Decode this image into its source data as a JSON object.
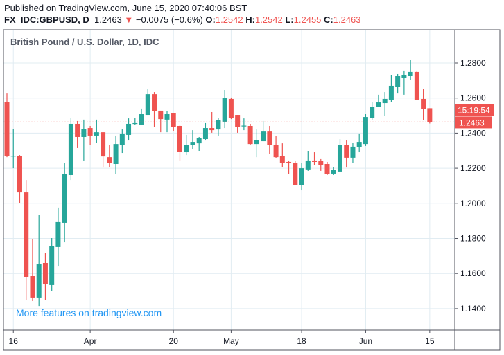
{
  "header": {
    "published": "Published on TradingView.com, June 15, 2020 07:40:06 BST",
    "symbol": "FX_IDC:GBPUSD, D",
    "last": "1.2463",
    "change": "−0.0075 (−0.6%)",
    "o_label": "O:",
    "o": "1.2542",
    "h_label": "H:",
    "h": "1.2542",
    "l_label": "L:",
    "l": "1.2455",
    "c_label": "C:",
    "c": "1.2463"
  },
  "watermark": "More features on tradingview.com",
  "colors": {
    "up": "#26a69a",
    "down": "#ef5350",
    "grid": "#e1ecf2",
    "axis": "#50535e",
    "link": "#2196f3"
  },
  "chart_data": {
    "type": "candlestick",
    "title": "British Pound / U.S. Dollar, 1D, IDC",
    "ylim": [
      1.128,
      1.294
    ],
    "y_ticks": [
      "1.2800",
      "1.2600",
      "1.2400",
      "1.2200",
      "1.2000",
      "1.1800",
      "1.1600",
      "1.1400"
    ],
    "y_tick_values": [
      1.28,
      1.26,
      1.24,
      1.22,
      1.2,
      1.18,
      1.16,
      1.14
    ],
    "x_ticks": [
      {
        "label": "16",
        "index": 1
      },
      {
        "label": "Apr",
        "index": 13
      },
      {
        "label": "20",
        "index": 26
      },
      {
        "label": "May",
        "index": 35
      },
      {
        "label": "18",
        "index": 46
      },
      {
        "label": "Jun",
        "index": 56
      },
      {
        "label": "15",
        "index": 66
      }
    ],
    "last_price_label": "1.2463",
    "countdown_label": "15:19:54",
    "last_price": 1.2463,
    "ohlc": [
      [
        1.2579,
        1.2626,
        1.2263,
        1.2271
      ],
      [
        1.2271,
        1.2425,
        1.22,
        1.2271
      ],
      [
        1.2271,
        1.2275,
        1.2003,
        1.2062
      ],
      [
        1.2062,
        1.2133,
        1.1451,
        1.1581
      ],
      [
        1.1585,
        1.1798,
        1.1443,
        1.1463
      ],
      [
        1.1463,
        1.1936,
        1.1415,
        1.1652
      ],
      [
        1.166,
        1.1719,
        1.1447,
        1.1538
      ],
      [
        1.1534,
        1.1802,
        1.1502,
        1.1758
      ],
      [
        1.1751,
        1.1976,
        1.164,
        1.1893
      ],
      [
        1.1889,
        1.2232,
        1.1778,
        1.2165
      ],
      [
        1.2161,
        1.2488,
        1.2133,
        1.2453
      ],
      [
        1.2453,
        1.2469,
        1.2315,
        1.2378
      ],
      [
        1.2378,
        1.2477,
        1.2244,
        1.2425
      ],
      [
        1.2429,
        1.2441,
        1.2331,
        1.2386
      ],
      [
        1.2386,
        1.2477,
        1.2346,
        1.2405
      ],
      [
        1.2405,
        1.2405,
        1.2204,
        1.2267
      ],
      [
        1.2263,
        1.2331,
        1.2208,
        1.2228
      ],
      [
        1.2224,
        1.2386,
        1.2165,
        1.2338
      ],
      [
        1.2334,
        1.2421,
        1.2287,
        1.2394
      ],
      [
        1.239,
        1.2484,
        1.2358,
        1.2453
      ],
      [
        1.2453,
        1.2488,
        1.2445,
        1.2457
      ],
      [
        1.2449,
        1.254,
        1.2449,
        1.2508
      ],
      [
        1.2504,
        1.265,
        1.2504,
        1.2622
      ],
      [
        1.2622,
        1.2634,
        1.2437,
        1.2524
      ],
      [
        1.2528,
        1.2528,
        1.2405,
        1.248
      ],
      [
        1.2477,
        1.2524,
        1.2405,
        1.2508
      ],
      [
        1.2512,
        1.2512,
        1.2413,
        1.2437
      ],
      [
        1.2441,
        1.2445,
        1.2244,
        1.2295
      ],
      [
        1.2291,
        1.239,
        1.2275,
        1.2334
      ],
      [
        1.2331,
        1.2417,
        1.2307,
        1.235
      ],
      [
        1.2342,
        1.2378,
        1.2299,
        1.237
      ],
      [
        1.2366,
        1.2457,
        1.2358,
        1.2429
      ],
      [
        1.2429,
        1.252,
        1.2402,
        1.2417
      ],
      [
        1.2421,
        1.2488,
        1.2386,
        1.2473
      ],
      [
        1.2465,
        1.2646,
        1.2429,
        1.2599
      ],
      [
        1.2595,
        1.2603,
        1.248,
        1.2488
      ],
      [
        1.2504,
        1.2504,
        1.2402,
        1.2437
      ],
      [
        1.2441,
        1.2484,
        1.2417,
        1.2443
      ],
      [
        1.2441,
        1.2453,
        1.2334,
        1.2338
      ],
      [
        1.2338,
        1.2421,
        1.2263,
        1.2362
      ],
      [
        1.2354,
        1.2469,
        1.2354,
        1.2409
      ],
      [
        1.2409,
        1.2441,
        1.2283,
        1.2331
      ],
      [
        1.2334,
        1.2382,
        1.2256,
        1.2263
      ],
      [
        1.2271,
        1.2342,
        1.2208,
        1.2232
      ],
      [
        1.2236,
        1.2244,
        1.2165,
        1.2228
      ],
      [
        1.2232,
        1.224,
        1.2102,
        1.2102
      ],
      [
        1.2102,
        1.2228,
        1.2074,
        1.22
      ],
      [
        1.2193,
        1.2299,
        1.2185,
        1.2244
      ],
      [
        1.2244,
        1.2291,
        1.222,
        1.2236
      ],
      [
        1.224,
        1.2252,
        1.2185,
        1.222
      ],
      [
        1.2224,
        1.2236,
        1.2161,
        1.2165
      ],
      [
        1.2169,
        1.2208,
        1.2161,
        1.2189
      ],
      [
        1.2181,
        1.2366,
        1.2181,
        1.2334
      ],
      [
        1.2334,
        1.2358,
        1.2204,
        1.226
      ],
      [
        1.226,
        1.2346,
        1.2232,
        1.2323
      ],
      [
        1.2319,
        1.2398,
        1.2291,
        1.235
      ],
      [
        1.2338,
        1.2508,
        1.2327,
        1.2492
      ],
      [
        1.2488,
        1.2579,
        1.2477,
        1.2551
      ],
      [
        1.2548,
        1.2619,
        1.2548,
        1.2575
      ],
      [
        1.2571,
        1.2634,
        1.25,
        1.2595
      ],
      [
        1.2591,
        1.2733,
        1.2579,
        1.267
      ],
      [
        1.2662,
        1.2737,
        1.2626,
        1.2725
      ],
      [
        1.2717,
        1.2757,
        1.2619,
        1.2729
      ],
      [
        1.2725,
        1.2816,
        1.2705,
        1.2749
      ],
      [
        1.2749,
        1.2757,
        1.2587,
        1.2591
      ],
      [
        1.2595,
        1.2654,
        1.2473,
        1.2536
      ],
      [
        1.2542,
        1.2542,
        1.2455,
        1.2463
      ]
    ]
  }
}
